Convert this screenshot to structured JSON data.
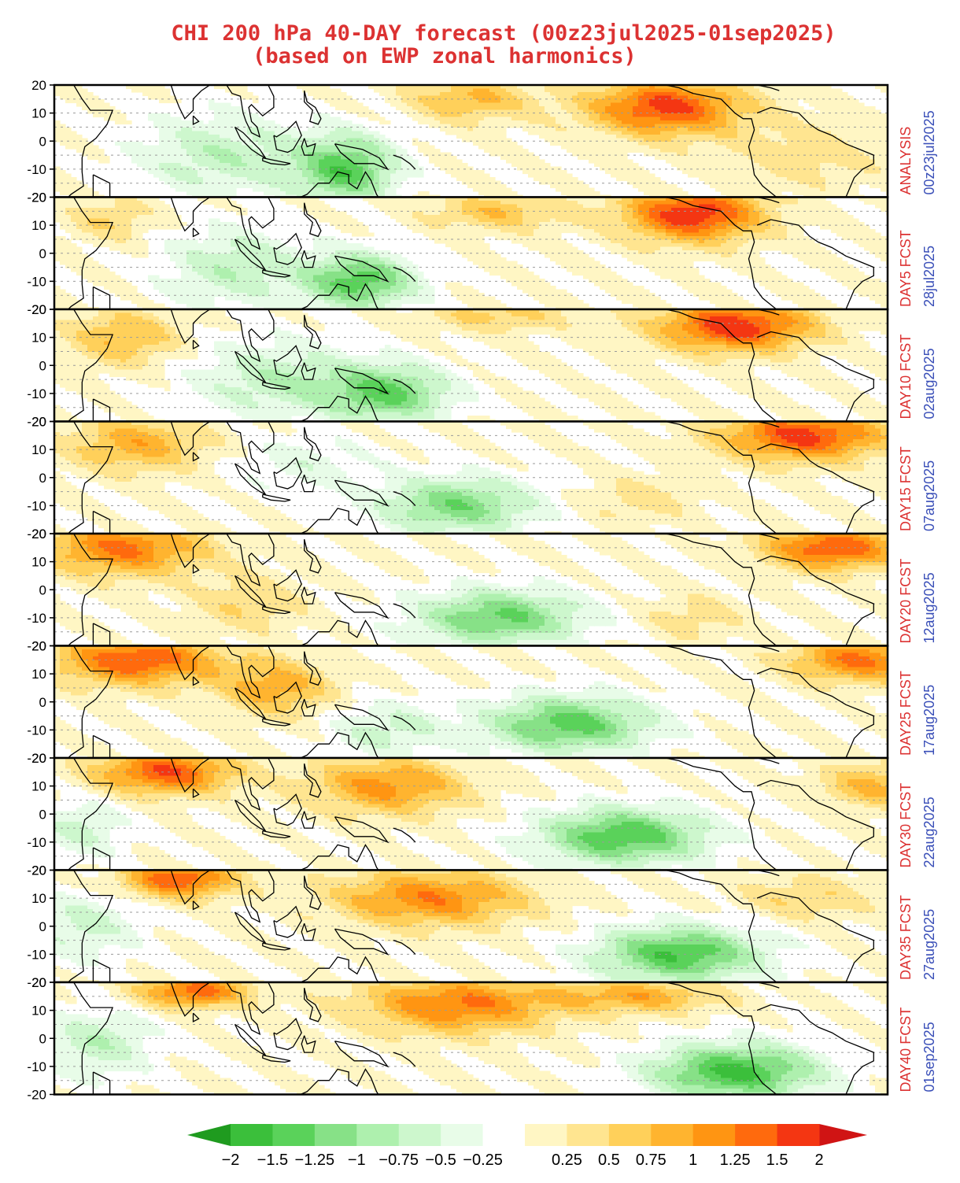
{
  "colors": {
    "title": "#dc3232",
    "label_red": "#dc3232",
    "label_blue": "#3a4fb8",
    "scale": [
      "#1f9b1f",
      "#3bbf3b",
      "#5ad25a",
      "#87e187",
      "#aef0ae",
      "#cdf7cd",
      "#e8fce8",
      "#ffffff",
      "#fff6c4",
      "#ffe590",
      "#ffd05a",
      "#ffb42f",
      "#ff9512",
      "#ff6a0d",
      "#f43612",
      "#d01414"
    ]
  },
  "chart_data": {
    "type": "heatmap",
    "title": "CHI 200 hPa 40-DAY forecast (00z23jul2025-01sep2025)",
    "subtitle": "(based on EWP zonal harmonics)",
    "yticks": [
      "20",
      "10",
      "0",
      "-10",
      "-20"
    ],
    "ylim": [
      -20,
      20
    ],
    "x_range_degrees_longitude": [
      30,
      330
    ],
    "grid": "dashed latitude lines every 5°",
    "colorbar": {
      "position": "bottom",
      "tick_labels": [
        "-2",
        "-1.5",
        "-1.25",
        "-1",
        "-0.75",
        "-0.5",
        "-0.25",
        "0.25",
        "0.5",
        "0.75",
        "1",
        "1.25",
        "1.5",
        "2"
      ],
      "levels": [
        -2,
        -1.5,
        -1.25,
        -1,
        -0.75,
        -0.5,
        -0.25,
        0,
        0.25,
        0.5,
        0.75,
        1,
        1.25,
        1.5,
        2
      ],
      "extends": "both"
    },
    "panels": [
      {
        "label": "ANALYSIS",
        "date": "00z23jul2025",
        "features": [
          {
            "lon": 250,
            "lat": 12,
            "amp": 1.6,
            "sx": 28,
            "sy": 10
          },
          {
            "lon": 180,
            "lat": 15,
            "amp": 0.8,
            "sx": 22,
            "sy": 8
          },
          {
            "lon": 135,
            "lat": -10,
            "amp": -1.4,
            "sx": 18,
            "sy": 12
          },
          {
            "lon": 90,
            "lat": -5,
            "amp": -0.7,
            "sx": 30,
            "sy": 15
          },
          {
            "lon": 300,
            "lat": -5,
            "amp": 0.4,
            "sx": 30,
            "sy": 12
          }
        ]
      },
      {
        "label": "DAY5 FCST",
        "date": "28jul2025",
        "features": [
          {
            "lon": 260,
            "lat": 14,
            "amp": 1.7,
            "sx": 25,
            "sy": 10
          },
          {
            "lon": 140,
            "lat": -10,
            "amp": -1.4,
            "sx": 20,
            "sy": 10
          },
          {
            "lon": 95,
            "lat": -5,
            "amp": -0.7,
            "sx": 25,
            "sy": 14
          },
          {
            "lon": 190,
            "lat": 15,
            "amp": 0.7,
            "sx": 25,
            "sy": 7
          },
          {
            "lon": 50,
            "lat": 12,
            "amp": 0.5,
            "sx": 15,
            "sy": 8
          }
        ]
      },
      {
        "label": "DAY10 FCST",
        "date": "02aug2025",
        "features": [
          {
            "lon": 275,
            "lat": 14,
            "amp": 1.7,
            "sx": 28,
            "sy": 9
          },
          {
            "lon": 150,
            "lat": -10,
            "amp": -1.3,
            "sx": 22,
            "sy": 10
          },
          {
            "lon": 110,
            "lat": -5,
            "amp": -0.7,
            "sx": 30,
            "sy": 14
          },
          {
            "lon": 55,
            "lat": 10,
            "amp": 0.8,
            "sx": 20,
            "sy": 10
          },
          {
            "lon": 190,
            "lat": 18,
            "amp": 0.6,
            "sx": 25,
            "sy": 6
          }
        ]
      },
      {
        "label": "DAY15 FCST",
        "date": "07aug2025",
        "features": [
          {
            "lon": 300,
            "lat": 15,
            "amp": 1.6,
            "sx": 30,
            "sy": 9
          },
          {
            "lon": 175,
            "lat": -10,
            "amp": -1.2,
            "sx": 28,
            "sy": 10
          },
          {
            "lon": 60,
            "lat": 12,
            "amp": 0.9,
            "sx": 25,
            "sy": 10
          },
          {
            "lon": 240,
            "lat": -8,
            "amp": 0.4,
            "sx": 20,
            "sy": 8
          },
          {
            "lon": 120,
            "lat": 5,
            "amp": -0.4,
            "sx": 25,
            "sy": 10
          }
        ]
      },
      {
        "label": "DAY20 FCST",
        "date": "12aug2025",
        "features": [
          {
            "lon": 310,
            "lat": 15,
            "amp": 1.5,
            "sx": 25,
            "sy": 8
          },
          {
            "lon": 190,
            "lat": -10,
            "amp": -1.3,
            "sx": 30,
            "sy": 10
          },
          {
            "lon": 55,
            "lat": 15,
            "amp": 1.3,
            "sx": 30,
            "sy": 10
          },
          {
            "lon": 100,
            "lat": -5,
            "amp": 0.5,
            "sx": 20,
            "sy": 10
          },
          {
            "lon": 260,
            "lat": -10,
            "amp": 0.4,
            "sx": 18,
            "sy": 8
          }
        ]
      },
      {
        "label": "DAY25 FCST",
        "date": "17aug2025",
        "features": [
          {
            "lon": 320,
            "lat": 15,
            "amp": 1.3,
            "sx": 25,
            "sy": 8
          },
          {
            "lon": 215,
            "lat": -8,
            "amp": -1.4,
            "sx": 30,
            "sy": 10
          },
          {
            "lon": 60,
            "lat": 15,
            "amp": 1.5,
            "sx": 30,
            "sy": 9
          },
          {
            "lon": 110,
            "lat": 5,
            "amp": 0.9,
            "sx": 20,
            "sy": 10
          },
          {
            "lon": 150,
            "lat": -10,
            "amp": -0.6,
            "sx": 20,
            "sy": 10
          }
        ]
      },
      {
        "label": "DAY30 FCST",
        "date": "22aug2025",
        "features": [
          {
            "lon": 235,
            "lat": -8,
            "amp": -1.5,
            "sx": 30,
            "sy": 10
          },
          {
            "lon": 70,
            "lat": 15,
            "amp": 1.5,
            "sx": 25,
            "sy": 8
          },
          {
            "lon": 150,
            "lat": 10,
            "amp": 1.1,
            "sx": 28,
            "sy": 10
          },
          {
            "lon": 325,
            "lat": 10,
            "amp": 0.8,
            "sx": 20,
            "sy": 8
          },
          {
            "lon": 40,
            "lat": -5,
            "amp": -0.6,
            "sx": 15,
            "sy": 10
          }
        ]
      },
      {
        "label": "DAY35 FCST",
        "date": "27aug2025",
        "features": [
          {
            "lon": 255,
            "lat": -10,
            "amp": -1.5,
            "sx": 30,
            "sy": 10
          },
          {
            "lon": 75,
            "lat": 17,
            "amp": 1.5,
            "sx": 20,
            "sy": 7
          },
          {
            "lon": 165,
            "lat": 10,
            "amp": 1.2,
            "sx": 35,
            "sy": 10
          },
          {
            "lon": 40,
            "lat": 0,
            "amp": -0.6,
            "sx": 20,
            "sy": 12
          },
          {
            "lon": 300,
            "lat": 10,
            "amp": 0.5,
            "sx": 25,
            "sy": 8
          }
        ]
      },
      {
        "label": "DAY40 FCST",
        "date": "01sep2025",
        "features": [
          {
            "lon": 275,
            "lat": -12,
            "amp": -1.6,
            "sx": 30,
            "sy": 10
          },
          {
            "lon": 80,
            "lat": 17,
            "amp": 1.4,
            "sx": 20,
            "sy": 6
          },
          {
            "lon": 175,
            "lat": 12,
            "amp": 1.3,
            "sx": 35,
            "sy": 10
          },
          {
            "lon": 45,
            "lat": -2,
            "amp": -0.7,
            "sx": 20,
            "sy": 12
          },
          {
            "lon": 240,
            "lat": 15,
            "amp": 0.9,
            "sx": 30,
            "sy": 6
          }
        ]
      }
    ]
  }
}
